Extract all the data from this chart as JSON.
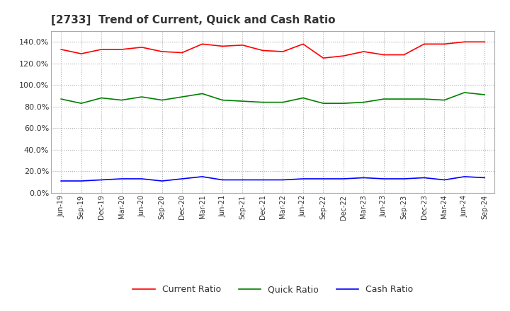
{
  "title": "[2733]  Trend of Current, Quick and Cash Ratio",
  "title_fontsize": 11,
  "ylim": [
    0,
    150
  ],
  "yticks": [
    0,
    20,
    40,
    60,
    80,
    100,
    120,
    140
  ],
  "background_color": "#ffffff",
  "plot_bg_color": "#ffffff",
  "grid_color": "#aaaaaa",
  "x_labels": [
    "Jun-19",
    "Sep-19",
    "Dec-19",
    "Mar-20",
    "Jun-20",
    "Sep-20",
    "Dec-20",
    "Mar-21",
    "Jun-21",
    "Sep-21",
    "Dec-21",
    "Mar-22",
    "Jun-22",
    "Sep-22",
    "Dec-22",
    "Mar-23",
    "Jun-23",
    "Sep-23",
    "Dec-23",
    "Mar-24",
    "Jun-24",
    "Sep-24"
  ],
  "current_ratio": [
    133,
    129,
    133,
    133,
    135,
    131,
    130,
    138,
    136,
    137,
    132,
    131,
    138,
    125,
    127,
    131,
    128,
    128,
    138,
    138,
    140,
    140
  ],
  "quick_ratio": [
    87,
    83,
    88,
    86,
    89,
    86,
    89,
    92,
    86,
    85,
    84,
    84,
    88,
    83,
    83,
    84,
    87,
    87,
    87,
    86,
    93,
    91
  ],
  "cash_ratio": [
    11,
    11,
    12,
    13,
    13,
    11,
    13,
    15,
    12,
    12,
    12,
    12,
    13,
    13,
    13,
    14,
    13,
    13,
    14,
    12,
    15,
    14
  ],
  "current_color": "#ff0000",
  "quick_color": "#008000",
  "cash_color": "#0000ff",
  "legend_labels": [
    "Current Ratio",
    "Quick Ratio",
    "Cash Ratio"
  ]
}
